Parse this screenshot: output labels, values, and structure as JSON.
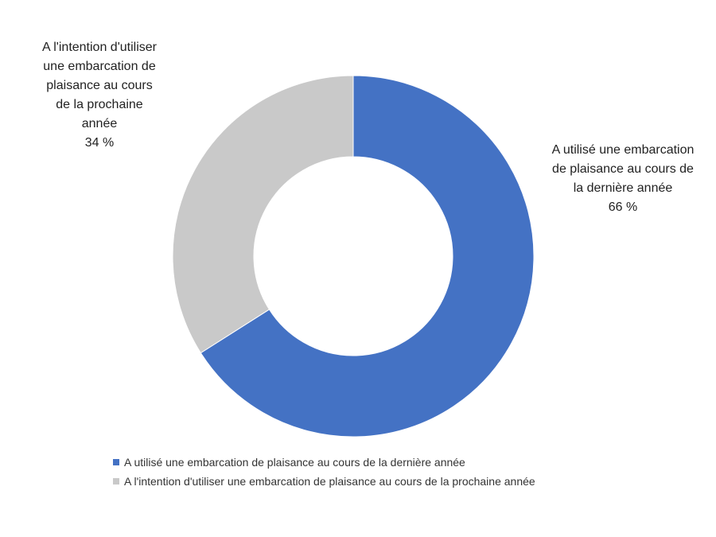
{
  "chart_data": {
    "type": "donut",
    "categories": [
      "A utilisé une embarcation de plaisance au cours de la dernière année",
      "A l'intention d'utiliser une embarcation de plaisance au cours de la prochaine année"
    ],
    "values": [
      66,
      34
    ],
    "value_labels": [
      "66 %",
      "34 %"
    ],
    "colors": [
      "#4472c4",
      "#c9c9c9"
    ],
    "legend": "bottom"
  }
}
